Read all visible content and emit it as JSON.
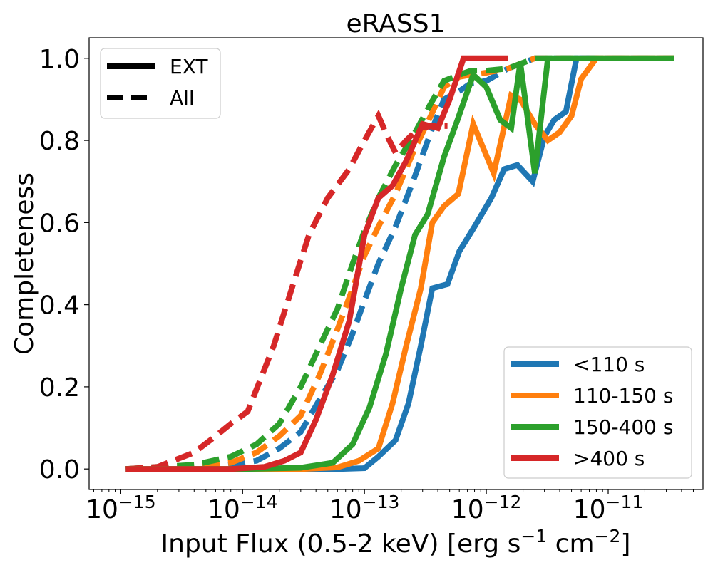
{
  "chart_data": {
    "type": "line",
    "title": "eRASS1",
    "xlabel": {
      "text": "Input Flux (0.5-2 keV) [erg s",
      "exp1": "−1",
      "mid": " cm",
      "exp2": "−2",
      "end": "]"
    },
    "ylabel": "Completeness",
    "x_scale": "log",
    "xlim": [
      5.5e-16,
      6e-11
    ],
    "ylim": [
      -0.05,
      1.05
    ],
    "x_ticks": [
      {
        "value": 1e-15,
        "base": "10",
        "exp": "−15"
      },
      {
        "value": 1e-14,
        "base": "10",
        "exp": "−14"
      },
      {
        "value": 1e-13,
        "base": "10",
        "exp": "−13"
      },
      {
        "value": 1e-12,
        "base": "10",
        "exp": "−12"
      },
      {
        "value": 1e-11,
        "base": "10",
        "exp": "−11"
      }
    ],
    "y_ticks": [
      {
        "value": 0.0,
        "label": "0.0"
      },
      {
        "value": 0.2,
        "label": "0.2"
      },
      {
        "value": 0.4,
        "label": "0.4"
      },
      {
        "value": 0.6,
        "label": "0.6"
      },
      {
        "value": 0.8,
        "label": "0.8"
      },
      {
        "value": 1.0,
        "label": "1.0"
      }
    ],
    "grid": false,
    "style_legend": {
      "placement": "upper-left",
      "entries": [
        {
          "label": "EXT",
          "dash": "solid"
        },
        {
          "label": "All",
          "dash": "dashed"
        }
      ]
    },
    "color_legend": {
      "placement": "lower-right",
      "entries": [
        {
          "label": "<110 s",
          "color": "#1f77b4"
        },
        {
          "label": "110-150 s",
          "color": "#ff7f0e"
        },
        {
          "label": "150-400 s",
          "color": "#2ca02c"
        },
        {
          "label": ">400 s",
          "color": "#d62728"
        }
      ]
    },
    "series": [
      {
        "color": "#1f77b4",
        "dash": "dashed",
        "x": [
          1.1e-15,
          2e-15,
          4e-15,
          8e-15,
          1.3e-14,
          2e-14,
          3e-14,
          4.3e-14,
          6e-14,
          8e-14,
          1e-13,
          1.3e-13,
          1.8e-13,
          2.5e-13,
          3.5e-13,
          4.5e-13,
          6e-13,
          7.5e-13,
          1e-12,
          1.5e-12,
          2.5e-12,
          4e-12,
          6e-12,
          1e-11,
          3.5e-11
        ],
        "y": [
          0.0,
          0.0,
          0.0,
          0.01,
          0.02,
          0.05,
          0.09,
          0.17,
          0.24,
          0.33,
          0.41,
          0.5,
          0.59,
          0.7,
          0.82,
          0.9,
          0.92,
          0.94,
          0.945,
          0.975,
          1.0,
          1.0,
          1.0,
          1.0,
          1.0
        ]
      },
      {
        "color": "#ff7f0e",
        "dash": "dashed",
        "x": [
          1.1e-15,
          2e-15,
          4e-15,
          8e-15,
          1.3e-14,
          2e-14,
          3e-14,
          4.3e-14,
          6e-14,
          8e-14,
          1e-13,
          1.3e-13,
          1.8e-13,
          2.5e-13,
          3.5e-13,
          4.5e-13,
          6e-13,
          7.5e-13,
          1e-12,
          1.5e-12,
          2.5e-12,
          4e-12,
          6e-12,
          1e-11,
          3.5e-11
        ],
        "y": [
          0.0,
          0.0,
          0.005,
          0.015,
          0.04,
          0.08,
          0.13,
          0.23,
          0.34,
          0.44,
          0.52,
          0.59,
          0.67,
          0.77,
          0.86,
          0.93,
          0.955,
          0.96,
          0.965,
          0.975,
          1.0,
          1.0,
          1.0,
          1.0,
          1.0
        ]
      },
      {
        "color": "#2ca02c",
        "dash": "dashed",
        "x": [
          1.1e-15,
          2e-15,
          4e-15,
          8e-15,
          1.3e-14,
          2e-14,
          3e-14,
          4.3e-14,
          6e-14,
          8e-14,
          1e-13,
          1.3e-13,
          1.8e-13,
          2.5e-13,
          3.5e-13,
          4.5e-13,
          6e-13,
          7.5e-13,
          1e-12,
          1.5e-12,
          2.5e-12,
          4e-12,
          6e-12,
          1e-11,
          3.5e-11
        ],
        "y": [
          0.0,
          0.005,
          0.01,
          0.03,
          0.06,
          0.11,
          0.2,
          0.3,
          0.39,
          0.5,
          0.58,
          0.66,
          0.74,
          0.81,
          0.89,
          0.945,
          0.96,
          0.97,
          0.97,
          0.975,
          1.0,
          1.0,
          1.0,
          1.0,
          1.0
        ]
      },
      {
        "color": "#d62728",
        "dash": "dashed",
        "x": [
          1.1e-15,
          2e-15,
          4e-15,
          6e-15,
          8e-15,
          1.1e-14,
          1.8e-14,
          2.6e-14,
          3.5e-14,
          5e-14,
          7.5e-14,
          1e-13,
          1.3e-13,
          1.6e-13,
          1.8e-13,
          2.2e-13,
          2.8e-13,
          3.6e-13,
          4.8e-13
        ],
        "y": [
          0.0,
          0.005,
          0.04,
          0.08,
          0.11,
          0.14,
          0.3,
          0.45,
          0.57,
          0.66,
          0.73,
          0.8,
          0.86,
          0.8,
          0.77,
          0.8,
          0.83,
          0.835,
          0.835
        ]
      },
      {
        "color": "#1f77b4",
        "dash": "solid",
        "x": [
          1.1e-15,
          1e-14,
          3e-14,
          6e-14,
          1e-13,
          1.3e-13,
          1.8e-13,
          2.3e-13,
          2.9e-13,
          3.6e-13,
          4.8e-13,
          6e-13,
          8e-13,
          1.1e-12,
          1.4e-12,
          1.8e-12,
          2.4e-12,
          3e-12,
          3.6e-12,
          4.5e-12,
          5.5e-12,
          7e-12
        ],
        "y": [
          0.0,
          0.0,
          0.0,
          0.0,
          0.002,
          0.03,
          0.07,
          0.16,
          0.3,
          0.44,
          0.45,
          0.53,
          0.59,
          0.66,
          0.73,
          0.74,
          0.7,
          0.81,
          0.85,
          0.87,
          1.0,
          1.0
        ]
      },
      {
        "color": "#ff7f0e",
        "dash": "solid",
        "x": [
          1.1e-15,
          1e-14,
          3e-14,
          6e-14,
          9e-14,
          1.3e-13,
          1.7e-13,
          2.2e-13,
          2.9e-13,
          3.6e-13,
          4.5e-13,
          5.9e-13,
          7.8e-13,
          1.15e-12,
          1.6e-12,
          1.9e-12,
          2.5e-12,
          3.2e-12,
          4e-12,
          5e-12,
          6e-12,
          8e-12,
          1.15e-11,
          3.5e-11
        ],
        "y": [
          0.0,
          0.0,
          0.0,
          0.004,
          0.02,
          0.05,
          0.16,
          0.3,
          0.44,
          0.6,
          0.64,
          0.67,
          0.84,
          0.72,
          0.91,
          0.9,
          0.84,
          0.8,
          0.82,
          0.86,
          0.95,
          1.0,
          1.0,
          1.0
        ]
      },
      {
        "color": "#2ca02c",
        "dash": "solid",
        "x": [
          1.1e-15,
          1e-14,
          3e-14,
          5.5e-14,
          8e-14,
          1.1e-13,
          1.5e-13,
          2e-13,
          2.6e-13,
          3.3e-13,
          4.5e-13,
          5.8e-13,
          7.8e-13,
          1e-12,
          1.3e-12,
          1.6e-12,
          1.9e-12,
          2.5e-12,
          3.2e-12,
          4.2e-12,
          5.5e-12,
          7e-12,
          1e-11,
          1.4e-11,
          1.8e-11,
          3.5e-11
        ],
        "y": [
          0.0,
          0.0,
          0.003,
          0.015,
          0.06,
          0.15,
          0.28,
          0.44,
          0.57,
          0.62,
          0.76,
          0.85,
          0.96,
          0.93,
          0.85,
          0.83,
          0.99,
          0.72,
          1.0,
          1.0,
          1.0,
          1.0,
          1.0,
          1.0,
          1.0,
          1.0
        ]
      },
      {
        "color": "#d62728",
        "dash": "solid",
        "x": [
          1.1e-15,
          8e-15,
          1.5e-14,
          2.2e-14,
          3e-14,
          4e-14,
          5.5e-14,
          7.5e-14,
          1e-13,
          1.3e-13,
          1.7e-13,
          2.2e-13,
          3e-13,
          4e-13,
          5e-13,
          6.5e-13,
          8e-13,
          1.5e-12
        ],
        "y": [
          0.0,
          0.0,
          0.005,
          0.02,
          0.04,
          0.12,
          0.23,
          0.36,
          0.57,
          0.66,
          0.69,
          0.75,
          0.84,
          0.83,
          0.9,
          1.0,
          1.0,
          1.0
        ]
      }
    ]
  }
}
